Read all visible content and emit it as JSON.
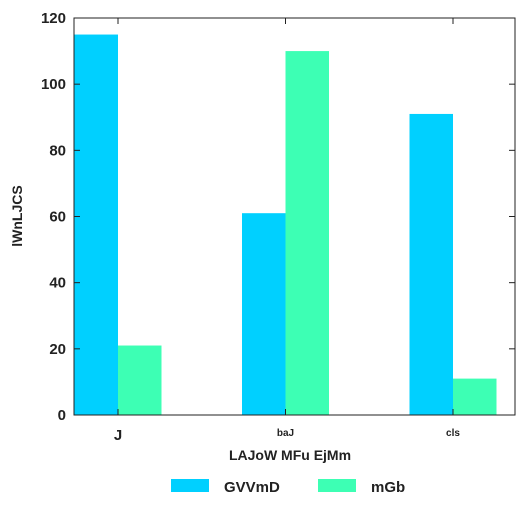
{
  "chart_data": {
    "type": "bar",
    "categories": [
      "J",
      "baJ",
      "cls"
    ],
    "series": [
      {
        "name": "GVVmD",
        "values": [
          115,
          61,
          91
        ],
        "color": "#00d0ff"
      },
      {
        "name": "mGb",
        "values": [
          21,
          110,
          11
        ],
        "color": "#3dffb4"
      }
    ],
    "xlabel": "LAJoW MFu EjMm",
    "ylabel": "lWnLJCS",
    "ylim": [
      0,
      120
    ],
    "yticks": [
      0,
      20,
      40,
      60,
      80,
      100,
      120
    ],
    "legend_position": "bottom-center",
    "grid": false
  }
}
